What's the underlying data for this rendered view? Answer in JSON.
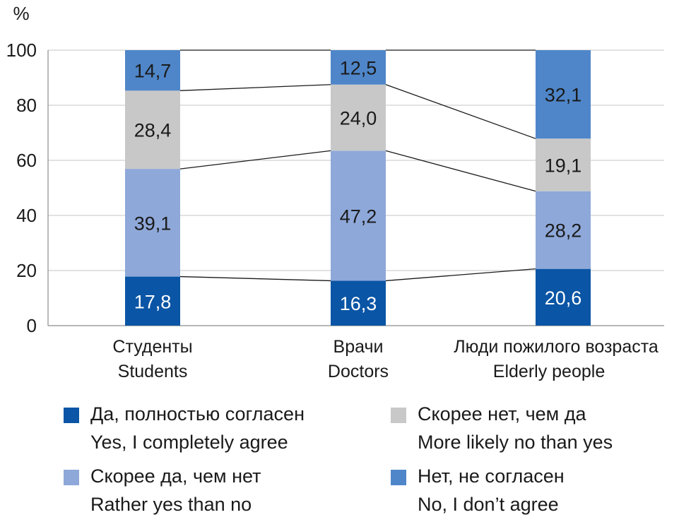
{
  "chart_data": {
    "type": "bar",
    "stacked": true,
    "y_unit_label": "%",
    "ylim": [
      0,
      100
    ],
    "yticks": [
      0,
      20,
      40,
      60,
      80,
      100
    ],
    "grid": true,
    "categories": [
      {
        "ru": "Студенты",
        "en": "Students"
      },
      {
        "ru": "Врачи",
        "en": "Doctors"
      },
      {
        "ru": "Люди пожилого возраста",
        "en": "Elderly people"
      }
    ],
    "series": [
      {
        "ru": "Да, полностью согласен",
        "en": "Yes, I completely agree",
        "color": "#0a55a5",
        "label_color": "#ffffff",
        "values": [
          17.8,
          16.3,
          20.6
        ],
        "labels": [
          "17,8",
          "16,3",
          "20,6"
        ]
      },
      {
        "ru": "Скорее да, чем нет",
        "en": "Rather yes than no",
        "color": "#8ea8d9",
        "label_color": "#1a1a1a",
        "values": [
          39.1,
          47.2,
          28.2
        ],
        "labels": [
          "39,1",
          "47,2",
          "28,2"
        ]
      },
      {
        "ru": "Скорее нет, чем да",
        "en": "More likely no than yes",
        "color": "#c8c8c8",
        "label_color": "#1a1a1a",
        "values": [
          28.4,
          24.0,
          19.1
        ],
        "labels": [
          "28,4",
          "24,0",
          "19,1"
        ]
      },
      {
        "ru": "Нет, не согласен",
        "en": "No, I don’t agree",
        "color": "#4f86c9",
        "label_color": "#1a1a1a",
        "values": [
          14.7,
          12.5,
          32.1
        ],
        "labels": [
          "14,7",
          "12,5",
          "32,1"
        ]
      }
    ],
    "legend_placement": "bottom"
  }
}
